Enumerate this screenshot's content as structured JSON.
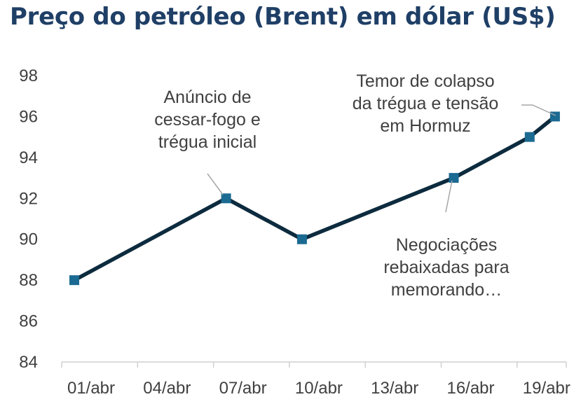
{
  "chart_data": {
    "type": "line",
    "title": "Preço do petróleo (Brent) em dólar (US$)",
    "xlabel": "",
    "ylabel": "",
    "x_ticks": [
      "01/abr",
      "04/abr",
      "07/abr",
      "10/abr",
      "13/abr",
      "16/abr",
      "19/abr"
    ],
    "y_ticks": [
      84,
      86,
      88,
      90,
      92,
      94,
      96,
      98
    ],
    "ylim": [
      84,
      98
    ],
    "grid": false,
    "series": [
      {
        "color": "#0d2b3e",
        "marker_color": "#1b6a92",
        "points": [
          {
            "x": "01/abr",
            "y": 88
          },
          {
            "x": "07/abr",
            "y": 92
          },
          {
            "x": "10/abr",
            "y": 90
          },
          {
            "x": "16/abr",
            "y": 93
          },
          {
            "x": "19/abr",
            "y": 95
          },
          {
            "x": "20/abr",
            "y": 96
          }
        ]
      }
    ],
    "annotations": [
      {
        "point": 1,
        "lines": [
          "Anúncio de",
          "cessar-fogo e",
          "trégua inicial"
        ]
      },
      {
        "point": 3,
        "lines": [
          "Negociações",
          "rebaixadas para",
          "memorando…"
        ]
      },
      {
        "point": 5,
        "lines": [
          "Temor de colapso",
          "da trégua e tensão",
          "em Hormuz"
        ]
      }
    ]
  }
}
